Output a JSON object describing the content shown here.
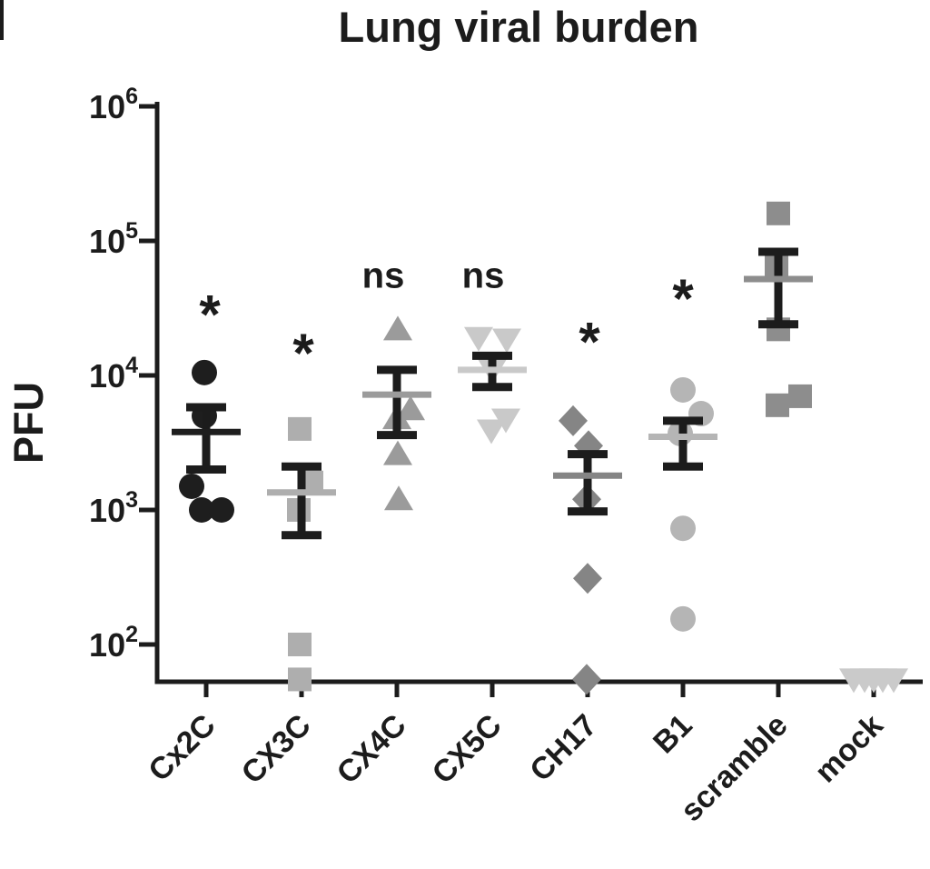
{
  "title": "Lung viral burden",
  "chart_data": {
    "type": "scatter",
    "title": "Lung viral burden",
    "xlabel": "",
    "ylabel": "PFU",
    "yscale": "log",
    "ylim": [
      50,
      1000000
    ],
    "grid": "off",
    "legend": "none",
    "error_bars": "mean ± SEM",
    "axis_color": "#1c1c1c",
    "yticks": [
      {
        "base": "10",
        "exp": "2",
        "value": 100
      },
      {
        "base": "10",
        "exp": "3",
        "value": 1000
      },
      {
        "base": "10",
        "exp": "4",
        "value": 10000
      },
      {
        "base": "10",
        "exp": "5",
        "value": 100000
      },
      {
        "base": "10",
        "exp": "6",
        "value": 1000000
      }
    ],
    "categories": [
      "Cx2C",
      "CX3C",
      "CX4C",
      "CX5C",
      "CH17",
      "B1",
      "scramble",
      "mock"
    ],
    "groups": [
      {
        "name": "Cx2C",
        "marker": "circle",
        "color": "#1e1e1e",
        "significance": "*",
        "sig_pfu": 35000,
        "sig_dx": 4,
        "points": [
          {
            "pfu": 10500,
            "dx": -2
          },
          {
            "pfu": 5000,
            "dx": -2
          },
          {
            "pfu": 1500,
            "dx": -16
          },
          {
            "pfu": 1000,
            "dx": -5
          },
          {
            "pfu": 1000,
            "dx": 17
          }
        ],
        "mean": 3800,
        "sem_low": 2000,
        "sem_high": 5800
      },
      {
        "name": "CX3C",
        "marker": "square",
        "color": "#aeaeae",
        "significance": "*",
        "sig_pfu": 18000,
        "sig_dx": 2,
        "points": [
          {
            "pfu": 4000,
            "dx": -2
          },
          {
            "pfu": 1600,
            "dx": 11
          },
          {
            "pfu": 1000,
            "dx": -3
          },
          {
            "pfu": 100,
            "dx": -2
          },
          {
            "pfu": 55,
            "dx": -2
          }
        ],
        "mean": 1350,
        "sem_low": 650,
        "sem_high": 2100
      },
      {
        "name": "CX4C",
        "marker": "triangle-up",
        "color": "#9b9b9b",
        "significance": "ns",
        "sig_pfu": 56000,
        "sig_dx": -15,
        "points": [
          {
            "pfu": 22000,
            "dx": 1
          },
          {
            "pfu": 5600,
            "dx": 15
          },
          {
            "pfu": 4800,
            "dx": 0
          },
          {
            "pfu": 2600,
            "dx": 1
          },
          {
            "pfu": 1200,
            "dx": 2
          }
        ],
        "mean": 7200,
        "sem_low": 3600,
        "sem_high": 11000
      },
      {
        "name": "CX5C",
        "marker": "triangle-down",
        "color": "#c9c9c9",
        "significance": "ns",
        "sig_pfu": 56000,
        "sig_dx": -10,
        "points": [
          {
            "pfu": 19000,
            "dx": -15
          },
          {
            "pfu": 18500,
            "dx": 16
          },
          {
            "pfu": 11000,
            "dx": 0
          },
          {
            "pfu": 4700,
            "dx": 15
          },
          {
            "pfu": 3900,
            "dx": -1
          }
        ],
        "mean": 11000,
        "sem_low": 8200,
        "sem_high": 14000
      },
      {
        "name": "CH17",
        "marker": "diamond",
        "color": "#858585",
        "significance": "*",
        "sig_pfu": 22000,
        "sig_dx": 2,
        "points": [
          {
            "pfu": 4600,
            "dx": -16
          },
          {
            "pfu": 3000,
            "dx": 1
          },
          {
            "pfu": 1200,
            "dx": -1
          },
          {
            "pfu": 310,
            "dx": 0
          },
          {
            "pfu": 55,
            "dx": -1
          }
        ],
        "mean": 1800,
        "sem_low": 975,
        "sem_high": 2600
      },
      {
        "name": "B1",
        "marker": "circle",
        "color": "#b5b5b5",
        "significance": "*",
        "sig_pfu": 46000,
        "sig_dx": 0,
        "points": [
          {
            "pfu": 7800,
            "dx": 0
          },
          {
            "pfu": 5200,
            "dx": 20
          },
          {
            "pfu": 3700,
            "dx": -3
          },
          {
            "pfu": 730,
            "dx": 0
          },
          {
            "pfu": 155,
            "dx": 0
          }
        ],
        "mean": 3500,
        "sem_low": 2100,
        "sem_high": 4600
      },
      {
        "name": "scramble",
        "marker": "square",
        "color": "#8d8d8d",
        "significance": "",
        "sig_pfu": null,
        "sig_dx": 0,
        "points": [
          {
            "pfu": 160000,
            "dx": 0
          },
          {
            "pfu": 66000,
            "dx": -2
          },
          {
            "pfu": 22000,
            "dx": 0
          },
          {
            "pfu": 7000,
            "dx": 24
          },
          {
            "pfu": 6000,
            "dx": -1
          }
        ],
        "mean": 52000,
        "sem_low": 24000,
        "sem_high": 83000
      },
      {
        "name": "mock",
        "marker": "triangle-down",
        "color": "#cacaca",
        "significance": "",
        "sig_pfu": null,
        "sig_dx": 0,
        "points": [
          {
            "pfu": 55,
            "dx": -22
          },
          {
            "pfu": 55,
            "dx": -10
          },
          {
            "pfu": 55,
            "dx": 0
          },
          {
            "pfu": 55,
            "dx": 10
          },
          {
            "pfu": 55,
            "dx": 22
          }
        ],
        "mean": null,
        "sem_low": null,
        "sem_high": null
      }
    ]
  }
}
